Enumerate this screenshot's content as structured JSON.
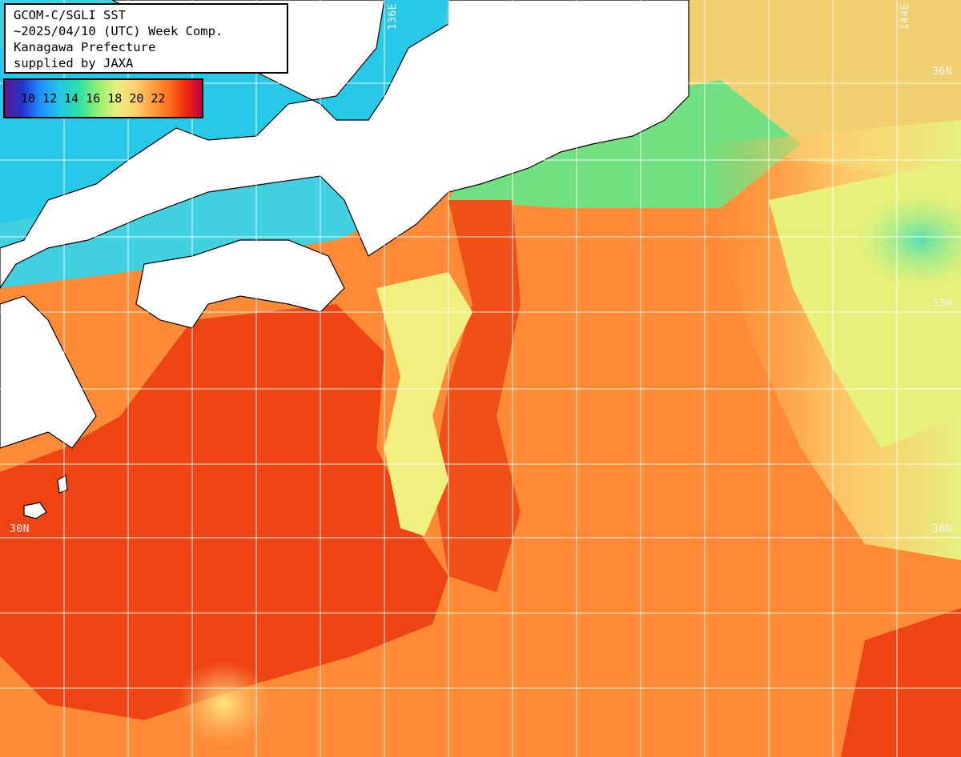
{
  "title": {
    "line1": "GCOM-C/SGLI SST",
    "line2": "~2025/04/10 (UTC) Week Comp.",
    "line3": "Kanagawa Prefecture",
    "line4": "supplied by JAXA"
  },
  "legend": {
    "labels": [
      "10",
      "12",
      "14",
      "16",
      "18",
      "20",
      "22"
    ]
  },
  "grid_labels": {
    "lon_136": "136E",
    "lon_144": "144E",
    "lat_36": "36N",
    "lat_33": "33N",
    "lat_30_left": "30N",
    "lat_30_right": "30N"
  },
  "colors": {
    "land": "#ffffff",
    "coast": "#000000",
    "grid": "#ffffff",
    "warm_core": "#ee3a12",
    "warm": "#ff7a2a",
    "mild": "#ffa850",
    "cool": "#f0f080",
    "cold": "#40d8c0"
  }
}
